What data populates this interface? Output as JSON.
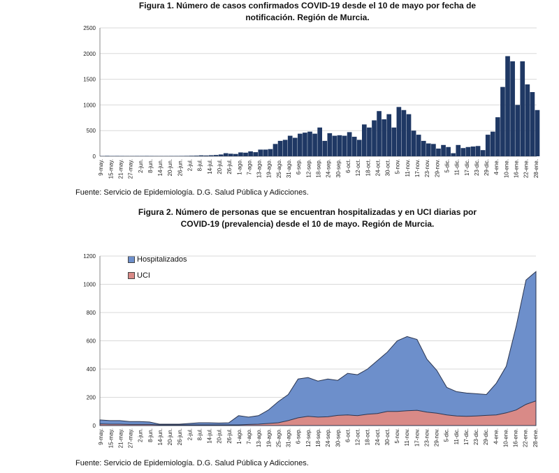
{
  "chart_data": [
    {
      "type": "bar",
      "title": "Figura 1. Número de casos confirmados COVID-19 desde el 10 de mayo por fecha de notificación. Región de Murcia.",
      "title_line1": "Figura 1. Número de casos confirmados COVID-19 desde el 10 de mayo por fecha de",
      "title_line2": "notificación. Región de Murcia.",
      "source": "Fuente: Servicio de Epidemiología. D.G. Salud Pública y Adicciones.",
      "xlabel": "",
      "ylabel": "",
      "ylim": [
        0,
        2500
      ],
      "yticks": [
        "0",
        "500",
        "1000",
        "1500",
        "2000",
        "2500"
      ],
      "bar_color": "#1f3864",
      "x_step_days": 3,
      "values": [
        5,
        8,
        6,
        7,
        6,
        5,
        5,
        6,
        6,
        7,
        6,
        5,
        5,
        5,
        6,
        6,
        7,
        8,
        10,
        12,
        18,
        15,
        20,
        25,
        35,
        60,
        50,
        45,
        75,
        70,
        95,
        80,
        130,
        130,
        140,
        240,
        300,
        320,
        400,
        360,
        440,
        460,
        480,
        440,
        560,
        300,
        450,
        400,
        410,
        400,
        470,
        380,
        320,
        620,
        560,
        700,
        880,
        720,
        820,
        560,
        960,
        900,
        820,
        500,
        420,
        300,
        250,
        240,
        150,
        220,
        180,
        60,
        220,
        160,
        180,
        190,
        200,
        120,
        420,
        480,
        760,
        1350,
        1950,
        1850,
        1000,
        1850,
        1400,
        1250,
        900
      ]
    },
    {
      "type": "area",
      "title_line1": "Figura 2. Número de personas que se encuentran hospitalizadas y en UCI diarias por",
      "title_line2": "COVID-19 (prevalencia) desde el 10 de mayo. Región de Murcia.",
      "source": "Fuente: Servicio de Epidemiología. D.G. Salud Pública y Adicciones.",
      "ylim": [
        0,
        1200
      ],
      "yticks": [
        "0",
        "200",
        "400",
        "600",
        "800",
        "1000",
        "1200"
      ],
      "legend_position": "top-left",
      "series": [
        {
          "name": "Hospitalizados",
          "color": "#6d8fcb",
          "values": [
            40,
            35,
            35,
            28,
            28,
            25,
            10,
            10,
            10,
            15,
            20,
            20,
            18,
            20,
            70,
            60,
            70,
            110,
            170,
            220,
            330,
            340,
            315,
            330,
            320,
            370,
            360,
            400,
            460,
            520,
            600,
            630,
            610,
            470,
            390,
            270,
            240,
            230,
            225,
            220,
            300,
            420,
            700,
            1030,
            1090
          ]
        },
        {
          "name": "UCI",
          "color": "#d98a87",
          "values": [
            12,
            10,
            10,
            8,
            8,
            8,
            5,
            5,
            5,
            5,
            5,
            5,
            5,
            5,
            5,
            8,
            10,
            15,
            20,
            35,
            55,
            65,
            60,
            62,
            72,
            75,
            70,
            80,
            85,
            100,
            100,
            105,
            108,
            95,
            88,
            75,
            68,
            65,
            68,
            72,
            75,
            90,
            110,
            150,
            175
          ]
        }
      ]
    }
  ],
  "x_tick_labels": [
    "9-may.",
    "15-may.",
    "21-may.",
    "27-may.",
    "2-jun.",
    "8-jun.",
    "14-jun.",
    "20-jun.",
    "26-jun.",
    "2-jul.",
    "8-jul.",
    "14-jul.",
    "20-jul.",
    "26-jul.",
    "1-ago.",
    "7-ago.",
    "13-ago.",
    "19-ago.",
    "25-ago.",
    "31-ago.",
    "6-sep.",
    "12-sep.",
    "18-sep.",
    "24-sep.",
    "30-sep.",
    "6-oct.",
    "12-oct.",
    "18-oct.",
    "24-oct.",
    "30-oct.",
    "5-nov.",
    "11-nov.",
    "17-nov.",
    "23-nov.",
    "29-nov.",
    "5-dic.",
    "11-dic.",
    "17-dic.",
    "23-dic.",
    "29-dic.",
    "4-ene.",
    "10-ene.",
    "16-ene.",
    "22-ene.",
    "28-ene."
  ]
}
